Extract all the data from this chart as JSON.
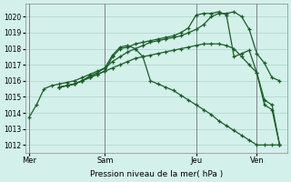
{
  "bg_color": "#d4f0ea",
  "grid_color": "#aad4cc",
  "line_color": "#1a5c28",
  "xlabel": "Pression niveau de la mer( hPa )",
  "ylim": [
    1011.5,
    1020.8
  ],
  "yticks": [
    1012,
    1013,
    1014,
    1015,
    1016,
    1017,
    1018,
    1019,
    1020
  ],
  "xtick_labels": [
    "Mer",
    "Sam",
    "Jeu",
    "Ven"
  ],
  "xtick_positions": [
    0,
    10,
    22,
    30
  ],
  "vlines": [
    0,
    10,
    22,
    30
  ],
  "total_xlim": [
    -0.5,
    34
  ],
  "series": [
    {
      "x": [
        0,
        1,
        2,
        3,
        4,
        5,
        6,
        7,
        8,
        9,
        10,
        11,
        12,
        13,
        14,
        15,
        16,
        17,
        18,
        19,
        20,
        21,
        22,
        23,
        24,
        25,
        26,
        27,
        28,
        29,
        30,
        31,
        32,
        33
      ],
      "y": [
        1013.7,
        1014.5,
        1015.5,
        1015.7,
        1015.8,
        1015.9,
        1016.0,
        1016.2,
        1016.4,
        1016.6,
        1016.8,
        1017.2,
        1017.5,
        1017.8,
        1018.0,
        1018.2,
        1018.4,
        1018.5,
        1018.6,
        1018.7,
        1018.8,
        1019.0,
        1019.2,
        1019.5,
        1020.0,
        1020.2,
        1020.2,
        1020.3,
        1020.0,
        1019.2,
        1017.7,
        1017.1,
        1016.2,
        1016.0
      ]
    },
    {
      "x": [
        4,
        5,
        6,
        7,
        8,
        9,
        10,
        11,
        12,
        13,
        14,
        15,
        16,
        17,
        18,
        19,
        20,
        21,
        22,
        23,
        24,
        25,
        26,
        27,
        28,
        29,
        30,
        31,
        32,
        33
      ],
      "y": [
        1015.6,
        1015.7,
        1015.8,
        1016.0,
        1016.2,
        1016.4,
        1016.6,
        1017.5,
        1018.0,
        1018.1,
        1018.3,
        1018.4,
        1018.5,
        1018.6,
        1018.7,
        1018.8,
        1019.0,
        1019.3,
        1020.1,
        1020.2,
        1020.2,
        1020.3,
        1020.1,
        1017.5,
        1017.7,
        1017.9,
        1016.5,
        1014.5,
        1014.2,
        1012.0
      ]
    },
    {
      "x": [
        4,
        5,
        6,
        7,
        8,
        9,
        10,
        11,
        12,
        13,
        14,
        15,
        16,
        17,
        18,
        19,
        20,
        21,
        22,
        23,
        24,
        25,
        26,
        27,
        28,
        29,
        30,
        31,
        32,
        33
      ],
      "y": [
        1015.6,
        1015.7,
        1015.8,
        1016.0,
        1016.3,
        1016.5,
        1016.8,
        1017.6,
        1018.1,
        1018.2,
        1018.0,
        1017.5,
        1016.0,
        1015.8,
        1015.6,
        1015.4,
        1015.1,
        1014.8,
        1014.5,
        1014.2,
        1013.9,
        1013.5,
        1013.2,
        1012.9,
        1012.6,
        1012.3,
        1012.0,
        1012.0,
        1012.0,
        1012.0
      ]
    },
    {
      "x": [
        4,
        5,
        6,
        7,
        8,
        9,
        10,
        11,
        12,
        13,
        14,
        15,
        16,
        17,
        18,
        19,
        20,
        21,
        22,
        23,
        24,
        25,
        26,
        27,
        28,
        29,
        30,
        31,
        32,
        33
      ],
      "y": [
        1015.6,
        1015.7,
        1015.8,
        1016.0,
        1016.2,
        1016.4,
        1016.6,
        1016.8,
        1017.0,
        1017.2,
        1017.4,
        1017.5,
        1017.6,
        1017.7,
        1017.8,
        1017.9,
        1018.0,
        1018.1,
        1018.2,
        1018.3,
        1018.3,
        1018.3,
        1018.2,
        1018.0,
        1017.5,
        1017.0,
        1016.5,
        1014.8,
        1014.5,
        1012.0
      ]
    }
  ]
}
